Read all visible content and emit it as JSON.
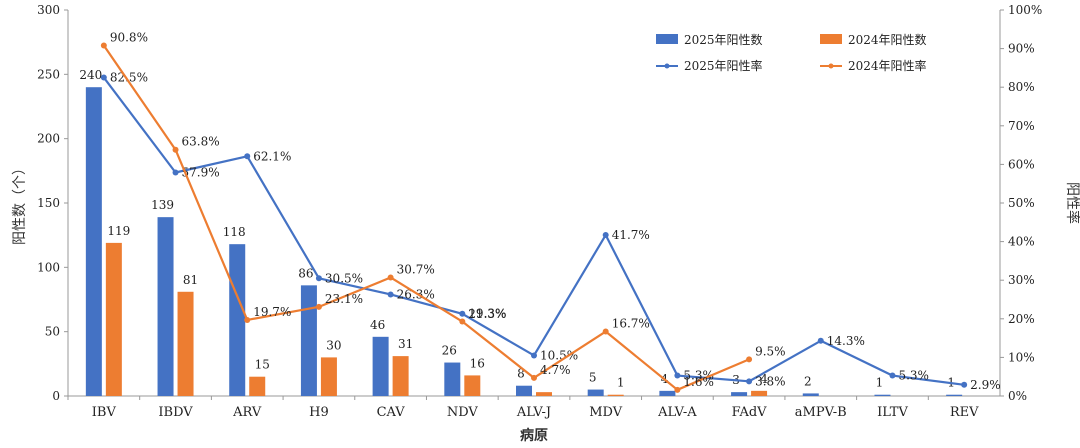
{
  "chart_data": {
    "type": "bar+line",
    "categories": [
      "IBV",
      "IBDV",
      "ARV",
      "H9",
      "CAV",
      "NDV",
      "ALV-J",
      "MDV",
      "ALV-A",
      "FAdV",
      "aMPV-B",
      "ILTV",
      "REV"
    ],
    "bar_series": [
      {
        "name": "2025年阳性数",
        "color": "#4472C4",
        "values": [
          240,
          139,
          118,
          86,
          46,
          26,
          8,
          5,
          4,
          3,
          2,
          1,
          1
        ],
        "labels": [
          "240",
          "139",
          "118",
          "86",
          "46",
          "26",
          "8",
          "5",
          "4",
          "3",
          "2",
          "1",
          "1"
        ]
      },
      {
        "name": "2024年阳性数",
        "color": "#ED7D31",
        "values": [
          119,
          81,
          15,
          30,
          31,
          16,
          3,
          1,
          0,
          4,
          null,
          null,
          null
        ],
        "labels": [
          "119",
          "81",
          "15",
          "30",
          "31",
          "16",
          "",
          "1",
          "",
          "4",
          "",
          "",
          ""
        ]
      }
    ],
    "line_series": [
      {
        "name": "2025年阳性率",
        "color": "#4472C4",
        "values": [
          82.5,
          57.9,
          62.1,
          30.5,
          26.3,
          21.3,
          10.5,
          41.7,
          5.3,
          3.8,
          14.3,
          5.3,
          2.9
        ],
        "labels": [
          "82.5%",
          "57.9%",
          "62.1%",
          "30.5%",
          "26.3%",
          "21.3%",
          "10.5%",
          "41.7%",
          "5.3%",
          "3.8%",
          "14.3%",
          "5.3%",
          "2.9%"
        ]
      },
      {
        "name": "2024年阳性率",
        "color": "#ED7D31",
        "values": [
          90.8,
          63.8,
          19.7,
          23.1,
          30.7,
          19.3,
          4.7,
          16.7,
          1.6,
          9.5,
          null,
          null,
          null
        ],
        "labels": [
          "90.8%",
          "63.8%",
          "19.7%",
          "23.1%",
          "30.7%",
          "19.3%",
          "4.7%",
          "16.7%",
          "1.6%",
          "9.5%",
          "",
          "",
          ""
        ]
      }
    ],
    "xlabel": "病原",
    "ylabel": "阳性数（个）",
    "y2label": "阳性率",
    "ylim": [
      0,
      300
    ],
    "yticks": [
      0,
      50,
      100,
      150,
      200,
      250,
      300
    ],
    "y2lim": [
      0,
      100
    ],
    "y2ticks": [
      0,
      10,
      20,
      30,
      40,
      50,
      60,
      70,
      80,
      90,
      100
    ],
    "y2_tick_suffix": "%",
    "legend": [
      "2025年阳性数",
      "2024年阳性数",
      "2025年阳性率",
      "2024年阳性率"
    ],
    "legend_position": "top-right",
    "grid": false
  }
}
